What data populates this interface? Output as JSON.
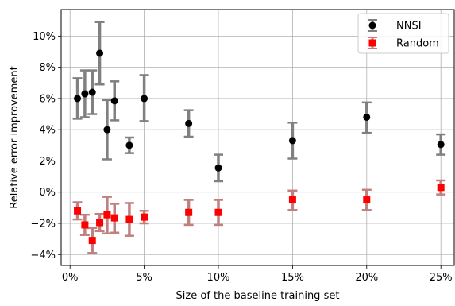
{
  "chart_data": {
    "type": "scatter",
    "title": "",
    "xlabel": "Size of the baseline training set",
    "ylabel": "Relative error improvement",
    "x_unit": "percent",
    "y_unit": "percent",
    "xlim": [
      -0.6,
      25.9
    ],
    "ylim": [
      -4.7,
      11.7
    ],
    "x_ticks": [
      0,
      5,
      10,
      15,
      20,
      25
    ],
    "x_tick_labels": [
      "0%",
      "5%",
      "10%",
      "15%",
      "20%",
      "25%"
    ],
    "y_ticks": [
      -4,
      -2,
      0,
      2,
      4,
      6,
      8,
      10
    ],
    "y_tick_labels": [
      "−4%",
      "−2%",
      "0%",
      "2%",
      "4%",
      "6%",
      "8%",
      "10%"
    ],
    "grid": true,
    "legend_position": "top-right",
    "series": [
      {
        "name": "NNSI",
        "marker": "circle",
        "color": "#000000",
        "error_color": "#808080",
        "points": [
          {
            "x": 0.5,
            "y": 6.0,
            "y_low": 4.7,
            "y_high": 7.3
          },
          {
            "x": 1.0,
            "y": 6.3,
            "y_low": 4.8,
            "y_high": 7.8
          },
          {
            "x": 1.5,
            "y": 6.4,
            "y_low": 5.0,
            "y_high": 7.8
          },
          {
            "x": 2.0,
            "y": 8.9,
            "y_low": 6.9,
            "y_high": 10.9
          },
          {
            "x": 2.5,
            "y": 4.0,
            "y_low": 2.1,
            "y_high": 5.9
          },
          {
            "x": 3.0,
            "y": 5.85,
            "y_low": 4.6,
            "y_high": 7.1
          },
          {
            "x": 4.0,
            "y": 3.0,
            "y_low": 2.5,
            "y_high": 3.5
          },
          {
            "x": 5.0,
            "y": 6.0,
            "y_low": 4.55,
            "y_high": 7.5
          },
          {
            "x": 8.0,
            "y": 4.4,
            "y_low": 3.55,
            "y_high": 5.25
          },
          {
            "x": 10.0,
            "y": 1.55,
            "y_low": 0.7,
            "y_high": 2.4
          },
          {
            "x": 15.0,
            "y": 3.3,
            "y_low": 2.15,
            "y_high": 4.45
          },
          {
            "x": 20.0,
            "y": 4.8,
            "y_low": 3.8,
            "y_high": 5.75
          },
          {
            "x": 25.0,
            "y": 3.05,
            "y_low": 2.4,
            "y_high": 3.7
          }
        ]
      },
      {
        "name": "Random",
        "marker": "square",
        "color": "#ff0000",
        "error_color": "#c08080",
        "points": [
          {
            "x": 0.5,
            "y": -1.2,
            "y_low": -1.75,
            "y_high": -0.65
          },
          {
            "x": 1.0,
            "y": -2.1,
            "y_low": -2.75,
            "y_high": -1.45
          },
          {
            "x": 1.5,
            "y": -3.1,
            "y_low": -3.9,
            "y_high": -2.3
          },
          {
            "x": 2.0,
            "y": -1.95,
            "y_low": -2.5,
            "y_high": -1.4
          },
          {
            "x": 2.5,
            "y": -1.45,
            "y_low": -2.65,
            "y_high": -0.3
          },
          {
            "x": 3.0,
            "y": -1.65,
            "y_low": -2.6,
            "y_high": -0.75
          },
          {
            "x": 4.0,
            "y": -1.75,
            "y_low": -2.8,
            "y_high": -0.7
          },
          {
            "x": 5.0,
            "y": -1.6,
            "y_low": -2.0,
            "y_high": -1.2
          },
          {
            "x": 8.0,
            "y": -1.3,
            "y_low": -2.1,
            "y_high": -0.5
          },
          {
            "x": 10.0,
            "y": -1.3,
            "y_low": -2.1,
            "y_high": -0.5
          },
          {
            "x": 15.0,
            "y": -0.5,
            "y_low": -1.15,
            "y_high": 0.1
          },
          {
            "x": 20.0,
            "y": -0.5,
            "y_low": -1.15,
            "y_high": 0.15
          },
          {
            "x": 25.0,
            "y": 0.3,
            "y_low": -0.15,
            "y_high": 0.75
          }
        ]
      }
    ]
  }
}
